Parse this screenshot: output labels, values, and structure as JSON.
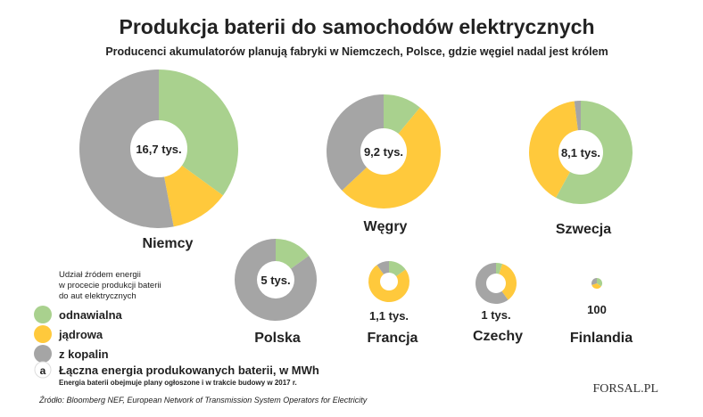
{
  "title": "Produkcja baterii do samochodów elektrycznych",
  "subtitle": "Producenci akumulatorów planują fabryki w Niemczech, Polsce, gdzie węgiel nadal jest królem",
  "colors": {
    "odnawialna": "#a9d18e",
    "jadrowa": "#ffc93c",
    "z_kopalin": "#a5a5a5",
    "center": "#ffffff"
  },
  "legend": {
    "title_lines": [
      "Udział źródem energii",
      "w procecie produkcji baterii",
      "do aut elektrycznych"
    ],
    "items": [
      {
        "label": "odnawialna",
        "color_key": "odnawialna"
      },
      {
        "label": "jądrowa",
        "color_key": "jadrowa"
      },
      {
        "label": "z kopalin",
        "color_key": "z_kopalin"
      }
    ],
    "total_symbol": "a",
    "total_label": "Łączna energia produkowanych baterii, w MWh",
    "note": "Energia baterii obejmuje plany ogłoszone i w trakcie budowy w 2017 r."
  },
  "source": "Źródło: Bloomberg NEF, European Network of Transmission System Operators for Electricity",
  "logo": "FORSAL.PL",
  "chart_data": {
    "type": "pie",
    "series_names": [
      "odnawialna",
      "jądrowa",
      "z kopalin"
    ],
    "countries": [
      {
        "name": "Niemcy",
        "total": 16.7,
        "total_label": "16,7 tys.",
        "odnawialna": 35,
        "jadrowa": 12,
        "z_kopalin": 53
      },
      {
        "name": "Węgry",
        "total": 9.2,
        "total_label": "9,2 tys.",
        "odnawialna": 11,
        "jadrowa": 52,
        "z_kopalin": 37
      },
      {
        "name": "Szwecja",
        "total": 8.1,
        "total_label": "8,1 tys.",
        "odnawialna": 58,
        "jadrowa": 40,
        "z_kopalin": 2
      },
      {
        "name": "Polska",
        "total": 5,
        "total_label": "5 tys.",
        "odnawialna": 15,
        "jadrowa": 0,
        "z_kopalin": 85
      },
      {
        "name": "Francja",
        "total": 1.1,
        "total_label": "1,1 tys.",
        "odnawialna": 15,
        "jadrowa": 75,
        "z_kopalin": 10
      },
      {
        "name": "Czechy",
        "total": 1,
        "total_label": "1 tys.",
        "odnawialna": 5,
        "jadrowa": 35,
        "z_kopalin": 60
      },
      {
        "name": "Finlandia",
        "total": 0.1,
        "total_label": "100",
        "odnawialna": 35,
        "jadrowa": 35,
        "z_kopalin": 30
      }
    ]
  }
}
